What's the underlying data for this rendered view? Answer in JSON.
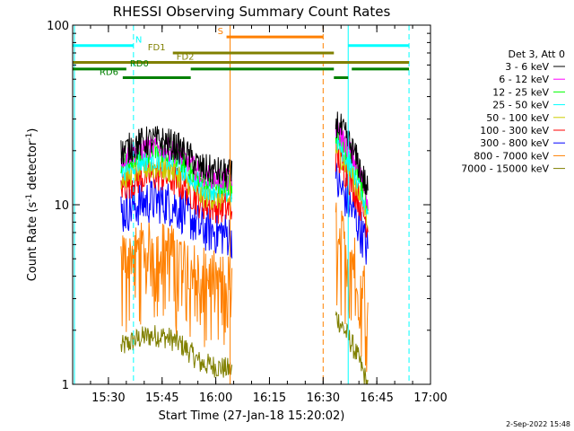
{
  "chart_data": {
    "type": "line",
    "title": "RHESSI Observing Summary Count Rates",
    "xlabel": "Start Time (27-Jan-18 15:20:02)",
    "ylabel_main": "Count Rate (s",
    "ylabel_sup1": "-1",
    "ylabel_mid": " detector",
    "ylabel_sup2": "-1",
    "ylabel_end": ")",
    "yscale": "log",
    "xlim_minutes": [
      20,
      120
    ],
    "ylim": [
      1,
      100
    ],
    "x_ticks": [
      {
        "min": 30,
        "label": "15:30"
      },
      {
        "min": 45,
        "label": "15:45"
      },
      {
        "min": 60,
        "label": "16:00"
      },
      {
        "min": 75,
        "label": "16:15"
      },
      {
        "min": 90,
        "label": "16:30"
      },
      {
        "min": 105,
        "label": "16:45"
      },
      {
        "min": 120,
        "label": "17:00"
      }
    ],
    "y_ticks": [
      {
        "value": 1,
        "label": "1"
      },
      {
        "value": 10,
        "label": "10"
      },
      {
        "value": 100,
        "label": "100"
      }
    ],
    "legend_title": "Det 3, Att 0",
    "series": [
      {
        "name": "3 - 6 keV",
        "color": "#000000"
      },
      {
        "name": "6 - 12 keV",
        "color": "#ff00ff"
      },
      {
        "name": "12 - 25 keV",
        "color": "#00ff00"
      },
      {
        "name": "25 - 50 keV",
        "color": "#00ffff"
      },
      {
        "name": "50 - 100 keV",
        "color": "#cccc00"
      },
      {
        "name": "100 - 300 keV",
        "color": "#ff0000"
      },
      {
        "name": "300 - 800 keV",
        "color": "#0000ff"
      },
      {
        "name": "800 - 7000 keV",
        "color": "#ff8000"
      },
      {
        "name": "7000 - 15000 keV",
        "color": "#808000"
      }
    ],
    "segments_minutes": [
      [
        33.5,
        64.5
      ],
      [
        93.5,
        102.5
      ]
    ],
    "flag_bars": [
      {
        "label": "N",
        "color": "#00ffff",
        "y_value": 77,
        "ranges": [
          [
            20,
            37
          ],
          [
            97,
            114
          ]
        ],
        "label_min": 37.5
      },
      {
        "label": "S",
        "color": "#ff8000",
        "y_value": 86,
        "ranges": [
          [
            63,
            90
          ]
        ],
        "label_min": 60.5
      },
      {
        "label": "FD1",
        "color": "#808000",
        "y_value": 70,
        "ranges": [
          [
            48,
            93
          ]
        ],
        "label_min": 41
      },
      {
        "label": "FD2",
        "color": "#808000",
        "y_value": 62,
        "ranges": [
          [
            20,
            114
          ]
        ],
        "label_min": 49
      },
      {
        "label": "RD0",
        "color": "#008000",
        "y_value": 57,
        "ranges": [
          [
            20,
            35
          ],
          [
            53,
            93
          ],
          [
            98,
            114
          ]
        ],
        "label_min": 36
      },
      {
        "label": "RD6",
        "color": "#008000",
        "y_value": 51,
        "ranges": [
          [
            34,
            53
          ],
          [
            93,
            97
          ]
        ],
        "label_min": 27.5
      }
    ],
    "vertical_lines": [
      {
        "min": 20.5,
        "color": "#00ffff",
        "style": "solid"
      },
      {
        "min": 37,
        "color": "#00ffff",
        "style": "dashed"
      },
      {
        "min": 64,
        "color": "#ff8000",
        "style": "solid"
      },
      {
        "min": 90,
        "color": "#ff8000",
        "style": "dashed"
      },
      {
        "min": 97,
        "color": "#00ffff",
        "style": "solid"
      },
      {
        "min": 114,
        "color": "#00ffff",
        "style": "dashed"
      }
    ]
  },
  "footer": {
    "date_stamp": "2-Sep-2022 15:48"
  }
}
